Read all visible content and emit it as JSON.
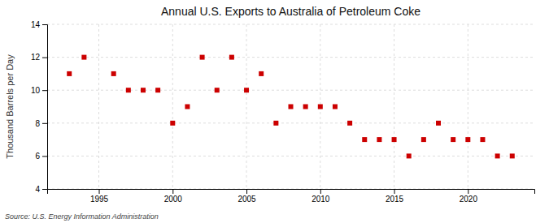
{
  "chart_data": {
    "type": "scatter",
    "title": "Annual U.S. Exports to Australia of Petroleum Coke",
    "ylabel": "Thousand Barrels per Day",
    "annotations": [
      "Source: U.S. Energy Information Administration"
    ],
    "x": [
      1993,
      1994,
      1996,
      1997,
      1998,
      1999,
      2000,
      2001,
      2002,
      2003,
      2004,
      2005,
      2006,
      2007,
      2008,
      2009,
      2010,
      2011,
      2012,
      2013,
      2014,
      2015,
      2016,
      2017,
      2018,
      2019,
      2020,
      2021,
      2022,
      2023
    ],
    "values": [
      11,
      12,
      11,
      10,
      10,
      10,
      8,
      9,
      12,
      10,
      12,
      10,
      11,
      8,
      9,
      9,
      9,
      9,
      8,
      7,
      7,
      7,
      6,
      7,
      8,
      7,
      7,
      7,
      6,
      6
    ],
    "xlim": [
      1991.5,
      2024.5
    ],
    "ylim": [
      4,
      14
    ],
    "xticks": [
      1995,
      2000,
      2005,
      2010,
      2015,
      2020
    ],
    "yticks": [
      4,
      6,
      8,
      10,
      12,
      14
    ],
    "color": "#cc0000",
    "marker": "square",
    "grid": true
  }
}
